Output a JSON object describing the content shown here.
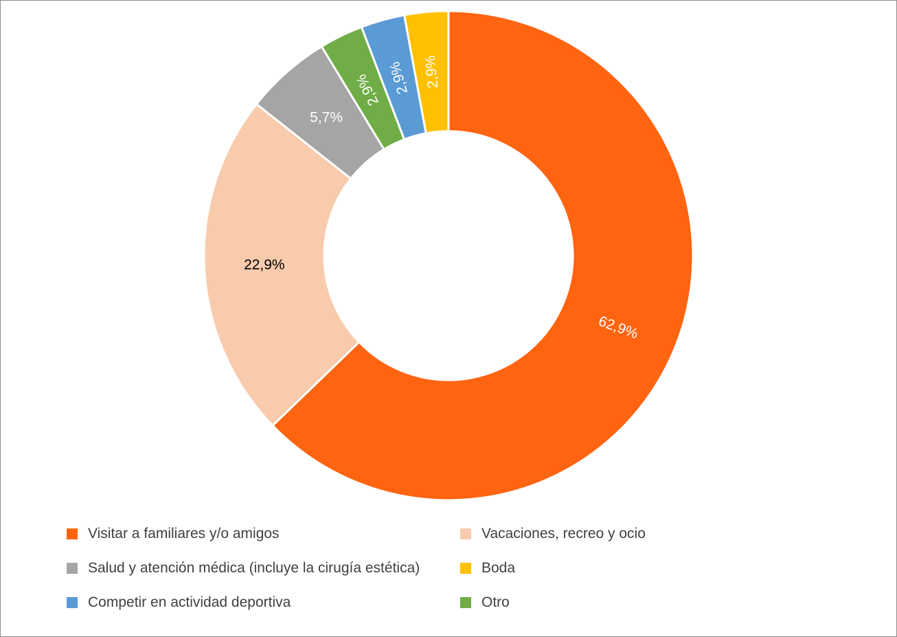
{
  "chart_data": {
    "type": "pie",
    "donut": true,
    "title": "",
    "categories": [
      "Visitar a familiares y/o amigos",
      "Vacaciones, recreo y ocio",
      "Salud y atención médica (incluye la cirugía estética)",
      "Otro",
      "Competir en actividad deportiva",
      "Boda"
    ],
    "values": [
      62.9,
      22.9,
      5.7,
      2.9,
      2.9,
      2.9
    ],
    "labels": [
      "62,9%",
      "22,9%",
      "5,7%",
      "2,9%",
      "2,9%",
      "2,9%"
    ],
    "colors": [
      "#ff6411",
      "#f8cbad",
      "#a5a5a5",
      "#70ad47",
      "#5b9bd5",
      "#ffc000"
    ],
    "label_colors": [
      "#ffffff",
      "#000000",
      "#ffffff",
      "#ffffff",
      "#ffffff",
      "#ffffff"
    ],
    "legend_position": "bottom",
    "legend": [
      {
        "label": "Visitar a familiares y/o amigos",
        "color": "#ff6411"
      },
      {
        "label": "Vacaciones, recreo y ocio",
        "color": "#f8cbad"
      },
      {
        "label": "Salud y atención médica (incluye la cirugía estética)",
        "color": "#a5a5a5"
      },
      {
        "label": "Boda",
        "color": "#ffc000"
      },
      {
        "label": "Competir en actividad deportiva",
        "color": "#5b9bd5"
      },
      {
        "label": "Otro",
        "color": "#70ad47"
      }
    ]
  }
}
